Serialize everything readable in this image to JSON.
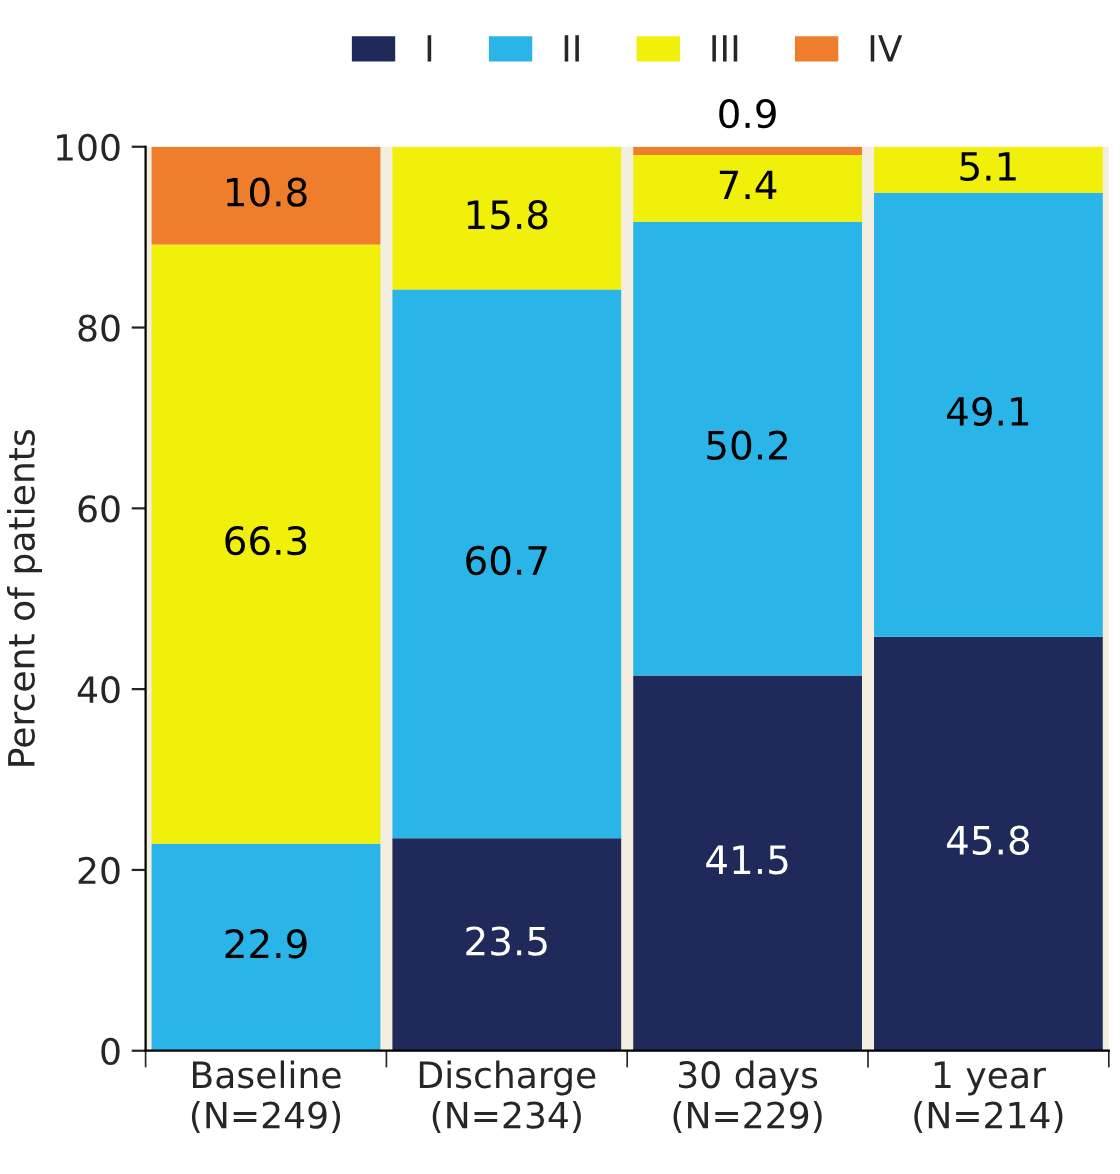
{
  "chart_data": {
    "type": "bar",
    "stacked": true,
    "ylabel": "Percent of patients",
    "categories": [
      "Baseline\n(N=249)",
      "Discharge\n(N=234)",
      "30 days\n(N=229)",
      "1 year\n(N=214)"
    ],
    "series": [
      {
        "name": "I",
        "color": "#1f2a5a",
        "values": [
          0,
          23.5,
          41.5,
          45.8
        ],
        "value_labels": [
          null,
          "23.5",
          "41.5",
          "45.8"
        ]
      },
      {
        "name": "II",
        "color": "#2bb4e8",
        "values": [
          22.9,
          60.7,
          50.2,
          49.1
        ],
        "value_labels": [
          "22.9",
          "60.7",
          "50.2",
          "49.1"
        ]
      },
      {
        "name": "III",
        "color": "#f0f00a",
        "values": [
          66.3,
          15.8,
          7.4,
          5.1
        ],
        "value_labels": [
          "66.3",
          "15.8",
          "7.4",
          "5.1"
        ]
      },
      {
        "name": "IV",
        "color": "#ee7d2c",
        "values": [
          10.8,
          0,
          0.9,
          0
        ],
        "value_labels": [
          "10.8",
          null,
          "0.9",
          null
        ]
      }
    ],
    "ylim": [
      0,
      100
    ],
    "yticks": [
      0,
      20,
      40,
      60,
      80,
      100
    ],
    "grid": false,
    "legend": "top"
  }
}
